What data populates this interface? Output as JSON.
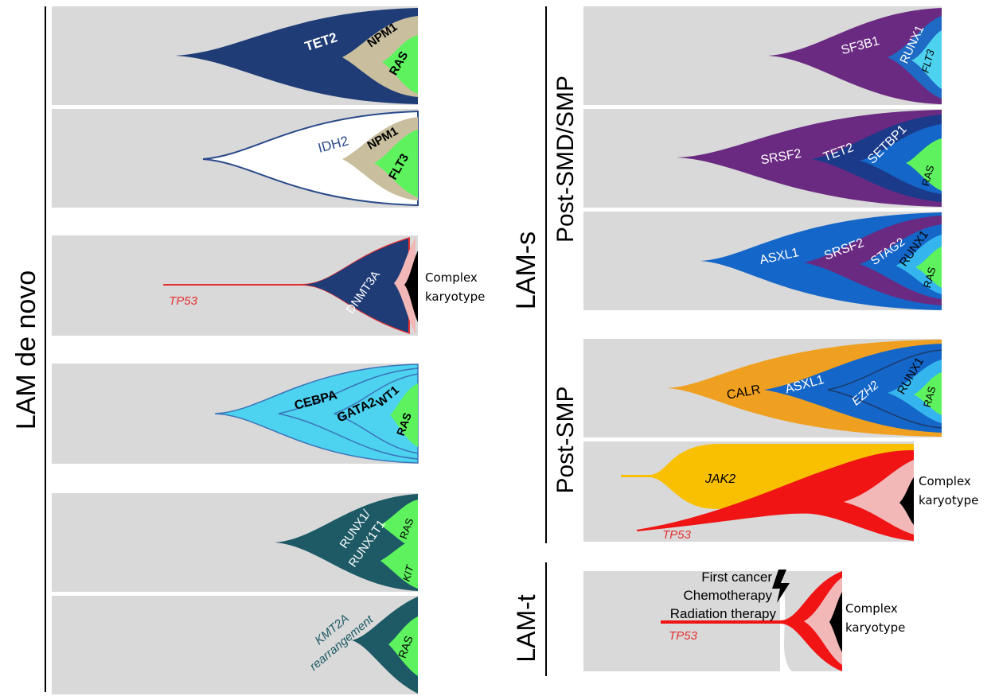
{
  "side_labels": {
    "lam_de_novo": "LAM de novo",
    "lam_s": "LAM-s",
    "post_smd_smp": "Post-SMD/SMP",
    "post_smp": "Post-SMP",
    "lam_t": "LAM-t"
  },
  "panels": {
    "tet2": {
      "labels": [
        "TET2",
        "NPM1",
        "RAS"
      ]
    },
    "idh2": {
      "labels": [
        "IDH2",
        "NPM1",
        "FLT3"
      ]
    },
    "dnmt3a": {
      "labels": [
        "TP53",
        "DNMT3A"
      ],
      "karyotype": [
        "Complex",
        "karyotype"
      ]
    },
    "cebpa": {
      "labels": [
        "CEBPA",
        "GATA2",
        "WT1",
        "RAS"
      ]
    },
    "runx1": {
      "labels": [
        "RUNX1/",
        "RUNX1T1",
        "RAS",
        "KIT"
      ]
    },
    "kmt2a": {
      "labels": [
        "KMT2A",
        "rearrangement",
        "RAS"
      ]
    },
    "sf3b1": {
      "labels": [
        "SF3B1",
        "RUNX1",
        "FLT3"
      ]
    },
    "srsf2": {
      "labels": [
        "SRSF2",
        "TET2",
        "SETBP1",
        "RAS"
      ]
    },
    "asxl1": {
      "labels": [
        "ASXL1",
        "SRSF2",
        "STAG2",
        "RUNX1",
        "RAS"
      ]
    },
    "calr": {
      "labels": [
        "CALR",
        "ASXL1",
        "EZH2",
        "RUNX1",
        "RAS"
      ]
    },
    "jak2": {
      "labels": [
        "JAK2",
        "TP53"
      ],
      "karyotype": [
        "Complex",
        "karyotype"
      ]
    },
    "lamt": {
      "labels": [
        "First cancer",
        "Chemotherapy",
        "Radiation therapy",
        "TP53"
      ],
      "karyotype": [
        "Complex",
        "karyotype"
      ]
    }
  },
  "colors": {
    "background": "#d9d9d9",
    "navy": "#1f3c76",
    "beige": "#c9bf9e",
    "green": "#5ef25e",
    "red": "#f01414",
    "pink": "#f2b8b8",
    "cyan": "#4dd2f0",
    "teal": "#1d5a66",
    "purple": "#6a2a82",
    "blue": "#1466c8",
    "lightblue": "#35b5ee",
    "orange": "#f0a020",
    "yellow": "#f8c000"
  }
}
